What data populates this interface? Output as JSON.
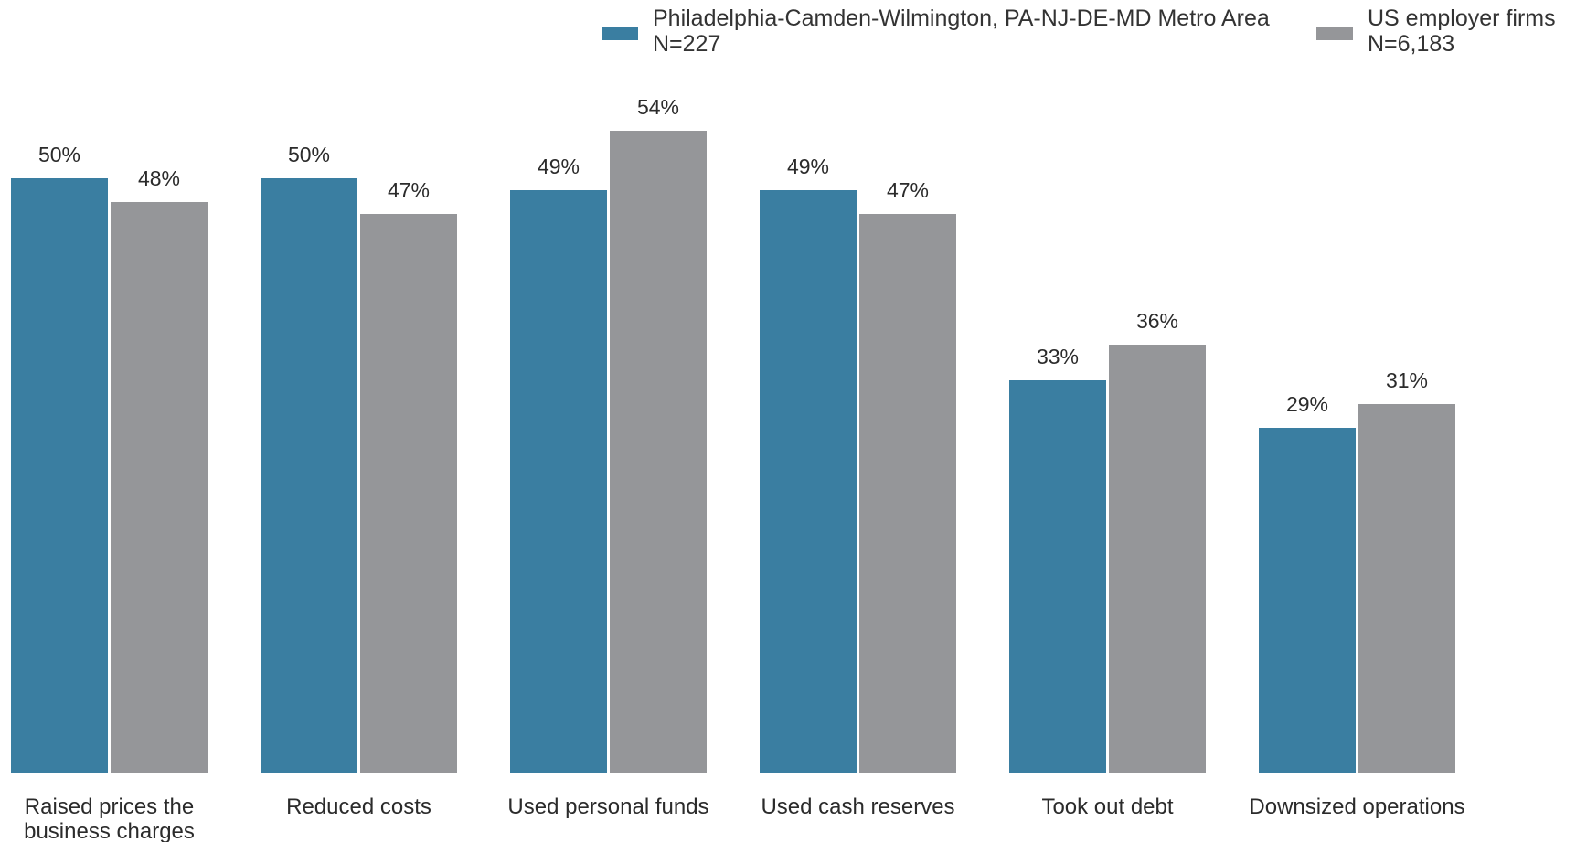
{
  "chart_data": {
    "type": "bar",
    "categories": [
      [
        "Raised prices the",
        "business charges"
      ],
      [
        "Reduced costs"
      ],
      [
        "Used personal funds"
      ],
      [
        "Used cash reserves"
      ],
      [
        "Took out debt"
      ],
      [
        "Downsized operations"
      ]
    ],
    "series": [
      {
        "name": "Philadelphia-Camden-Wilmington, PA-NJ-DE-MD Metro Area",
        "n_label": "N=227",
        "color": "#3a7ea1",
        "values": [
          50,
          50,
          49,
          49,
          33,
          29
        ],
        "labels": [
          "50%",
          "50%",
          "49%",
          "49%",
          "33%",
          "29%"
        ]
      },
      {
        "name": "US employer firms",
        "n_label": "N=6,183",
        "color": "#959699",
        "values": [
          48,
          47,
          54,
          47,
          36,
          31
        ],
        "labels": [
          "48%",
          "47%",
          "54%",
          "47%",
          "36%",
          "31%"
        ]
      }
    ],
    "ylim": [
      0,
      100
    ],
    "grid": false,
    "legend_position": "top-right"
  }
}
